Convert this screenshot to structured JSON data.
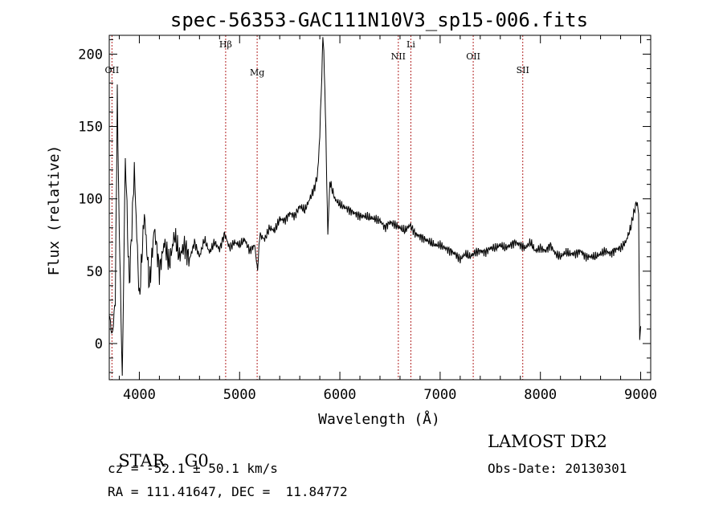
{
  "chart_data": {
    "type": "line",
    "title": "spec-56353-GAC111N10V3_sp15-006.fits",
    "xlabel": "Wavelength (Å)",
    "ylabel": "Flux (relative)",
    "xlim": [
      3700,
      9100
    ],
    "ylim": [
      -25,
      213
    ],
    "x_ticks": [
      4000,
      5000,
      6000,
      7000,
      8000,
      9000
    ],
    "y_ticks": [
      0,
      50,
      100,
      150,
      200
    ],
    "grid": false,
    "series": [
      {
        "x": [
          3700,
          3730,
          3760,
          3780,
          3800,
          3830,
          3860,
          3900,
          3950,
          4000,
          4050,
          4100,
          4150,
          4200,
          4250,
          4300,
          4350,
          4400,
          4450,
          4500,
          4550,
          4600,
          4650,
          4700,
          4750,
          4800,
          4850,
          4900,
          4950,
          5000,
          5050,
          5100,
          5150,
          5180,
          5200,
          5250,
          5300,
          5350,
          5400,
          5450,
          5500,
          5550,
          5600,
          5650,
          5700,
          5750,
          5780,
          5800,
          5820,
          5830,
          5840,
          5850,
          5860,
          5870,
          5880,
          5900,
          5950,
          6000,
          6050,
          6100,
          6150,
          6200,
          6250,
          6300,
          6350,
          6400,
          6450,
          6500,
          6550,
          6600,
          6650,
          6700,
          6750,
          6800,
          6850,
          6900,
          6950,
          7000,
          7050,
          7100,
          7150,
          7200,
          7250,
          7300,
          7350,
          7400,
          7450,
          7500,
          7550,
          7600,
          7650,
          7700,
          7750,
          7800,
          7850,
          7900,
          7950,
          8000,
          8050,
          8100,
          8150,
          8200,
          8250,
          8300,
          8350,
          8400,
          8450,
          8500,
          8550,
          8600,
          8650,
          8700,
          8750,
          8800,
          8850,
          8900,
          8930,
          8960,
          8980,
          8990,
          9000
        ],
        "y": [
          20,
          5,
          30,
          170,
          80,
          -25,
          130,
          40,
          120,
          30,
          90,
          40,
          80,
          50,
          70,
          55,
          75,
          60,
          68,
          58,
          70,
          60,
          72,
          63,
          70,
          65,
          76,
          66,
          70,
          68,
          72,
          64,
          68,
          50,
          75,
          72,
          80,
          78,
          86,
          85,
          90,
          88,
          95,
          92,
          100,
          108,
          118,
          145,
          185,
          210,
          200,
          175,
          150,
          110,
          75,
          112,
          100,
          96,
          94,
          92,
          90,
          88,
          88,
          87,
          86,
          85,
          80,
          84,
          82,
          80,
          78,
          82,
          76,
          74,
          72,
          70,
          68,
          68,
          66,
          64,
          62,
          58,
          62,
          60,
          63,
          64,
          63,
          66,
          66,
          68,
          66,
          68,
          70,
          68,
          66,
          70,
          64,
          66,
          64,
          68,
          62,
          60,
          63,
          62,
          62,
          64,
          60,
          60,
          60,
          62,
          64,
          62,
          65,
          66,
          70,
          80,
          90,
          98,
          90,
          0,
          12
        ]
      }
    ],
    "lines": [
      {
        "label": "OII",
        "x": 3727
      },
      {
        "label": "Hβ",
        "x": 4861
      },
      {
        "label": "Mg",
        "x": 5175
      },
      {
        "label": "NII",
        "x": 6583
      },
      {
        "label": "Li",
        "x": 6708
      },
      {
        "label": "OII",
        "x": 7330
      },
      {
        "label": "SII",
        "x": 7824
      }
    ],
    "line_color": "#b22222"
  },
  "info": {
    "object_type": "STAR",
    "subclass": "G0",
    "survey": "LAMOST DR2",
    "redshift": "cz = -52.1 ± 50.1 km/s",
    "obs_date": "Obs-Date: 20130301",
    "coordinates": "RA = 111.41647, DEC =  11.84772"
  }
}
